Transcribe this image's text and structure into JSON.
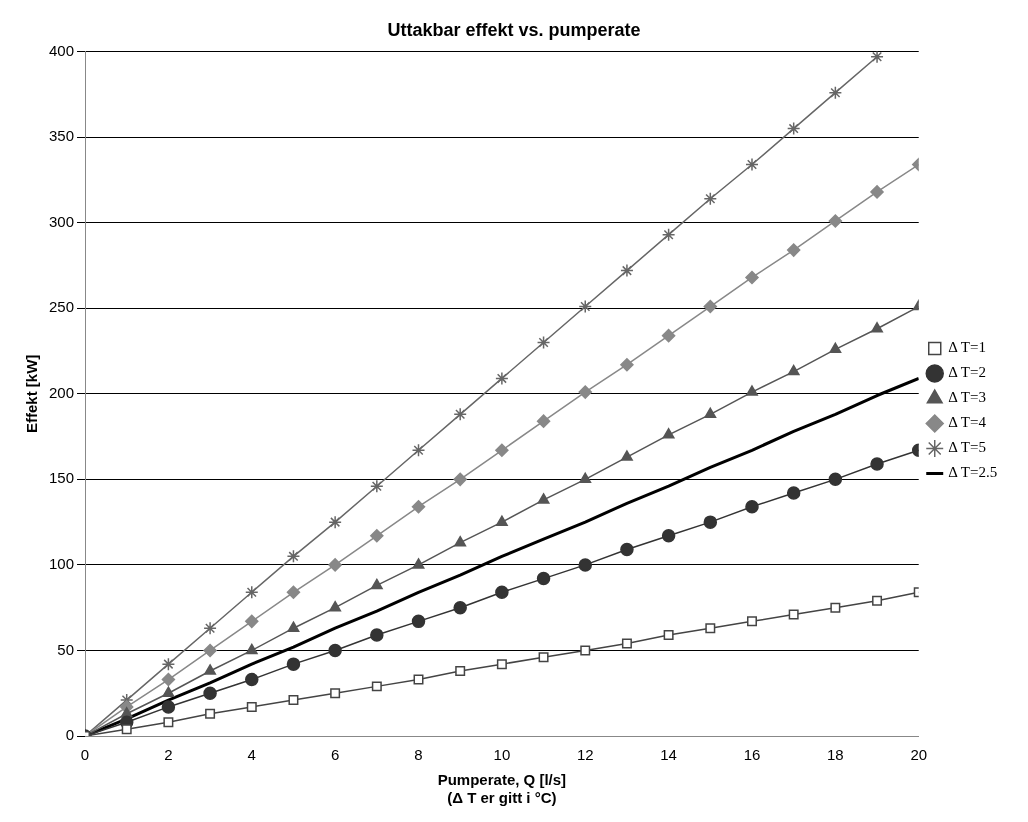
{
  "chart_data": {
    "type": "line",
    "title": "Uttakbar effekt vs. pumperate",
    "xlabel": "Pumperate, Q [l/s]\n(Δ T er gitt i °C)",
    "ylabel": "Effekt [kW]",
    "x": [
      0,
      1,
      2,
      3,
      4,
      5,
      6,
      7,
      8,
      9,
      10,
      11,
      12,
      13,
      14,
      15,
      16,
      17,
      18,
      19,
      20
    ],
    "xlim": [
      0,
      20
    ],
    "xticks": [
      0,
      2,
      4,
      6,
      8,
      10,
      12,
      14,
      16,
      18,
      20
    ],
    "ylim": [
      0,
      400
    ],
    "yticks": [
      0,
      50,
      100,
      150,
      200,
      250,
      300,
      350,
      400
    ],
    "grid": "y",
    "legend": "right",
    "series": [
      {
        "name": "Δ T=1",
        "color": "#444444",
        "marker": "square",
        "values": [
          0,
          4,
          8,
          13,
          17,
          21,
          25,
          29,
          33,
          38,
          42,
          46,
          50,
          54,
          59,
          63,
          67,
          71,
          75,
          79,
          84
        ]
      },
      {
        "name": "Δ T=2",
        "color": "#333333",
        "marker": "circle",
        "values": [
          0,
          8,
          17,
          25,
          33,
          42,
          50,
          59,
          67,
          75,
          84,
          92,
          100,
          109,
          117,
          125,
          134,
          142,
          150,
          159,
          167
        ]
      },
      {
        "name": "Δ T=3",
        "color": "#555555",
        "marker": "triangle",
        "values": [
          0,
          13,
          25,
          38,
          50,
          63,
          75,
          88,
          100,
          113,
          125,
          138,
          150,
          163,
          176,
          188,
          201,
          213,
          226,
          238,
          251
        ]
      },
      {
        "name": "Δ T=4",
        "color": "#888888",
        "marker": "diamond",
        "values": [
          0,
          17,
          33,
          50,
          67,
          84,
          100,
          117,
          134,
          150,
          167,
          184,
          201,
          217,
          234,
          251,
          268,
          284,
          301,
          318,
          334
        ]
      },
      {
        "name": "Δ T=5",
        "color": "#666666",
        "marker": "cross",
        "values": [
          0,
          21,
          42,
          63,
          84,
          105,
          125,
          146,
          167,
          188,
          209,
          230,
          251,
          272,
          293,
          314,
          334,
          355,
          376,
          397,
          null
        ]
      },
      {
        "name": "Δ T=2.5",
        "color": "#000000",
        "marker": "none",
        "values": [
          0,
          10,
          21,
          31,
          42,
          52,
          63,
          73,
          84,
          94,
          105,
          115,
          125,
          136,
          146,
          157,
          167,
          178,
          188,
          199,
          209
        ]
      }
    ]
  }
}
